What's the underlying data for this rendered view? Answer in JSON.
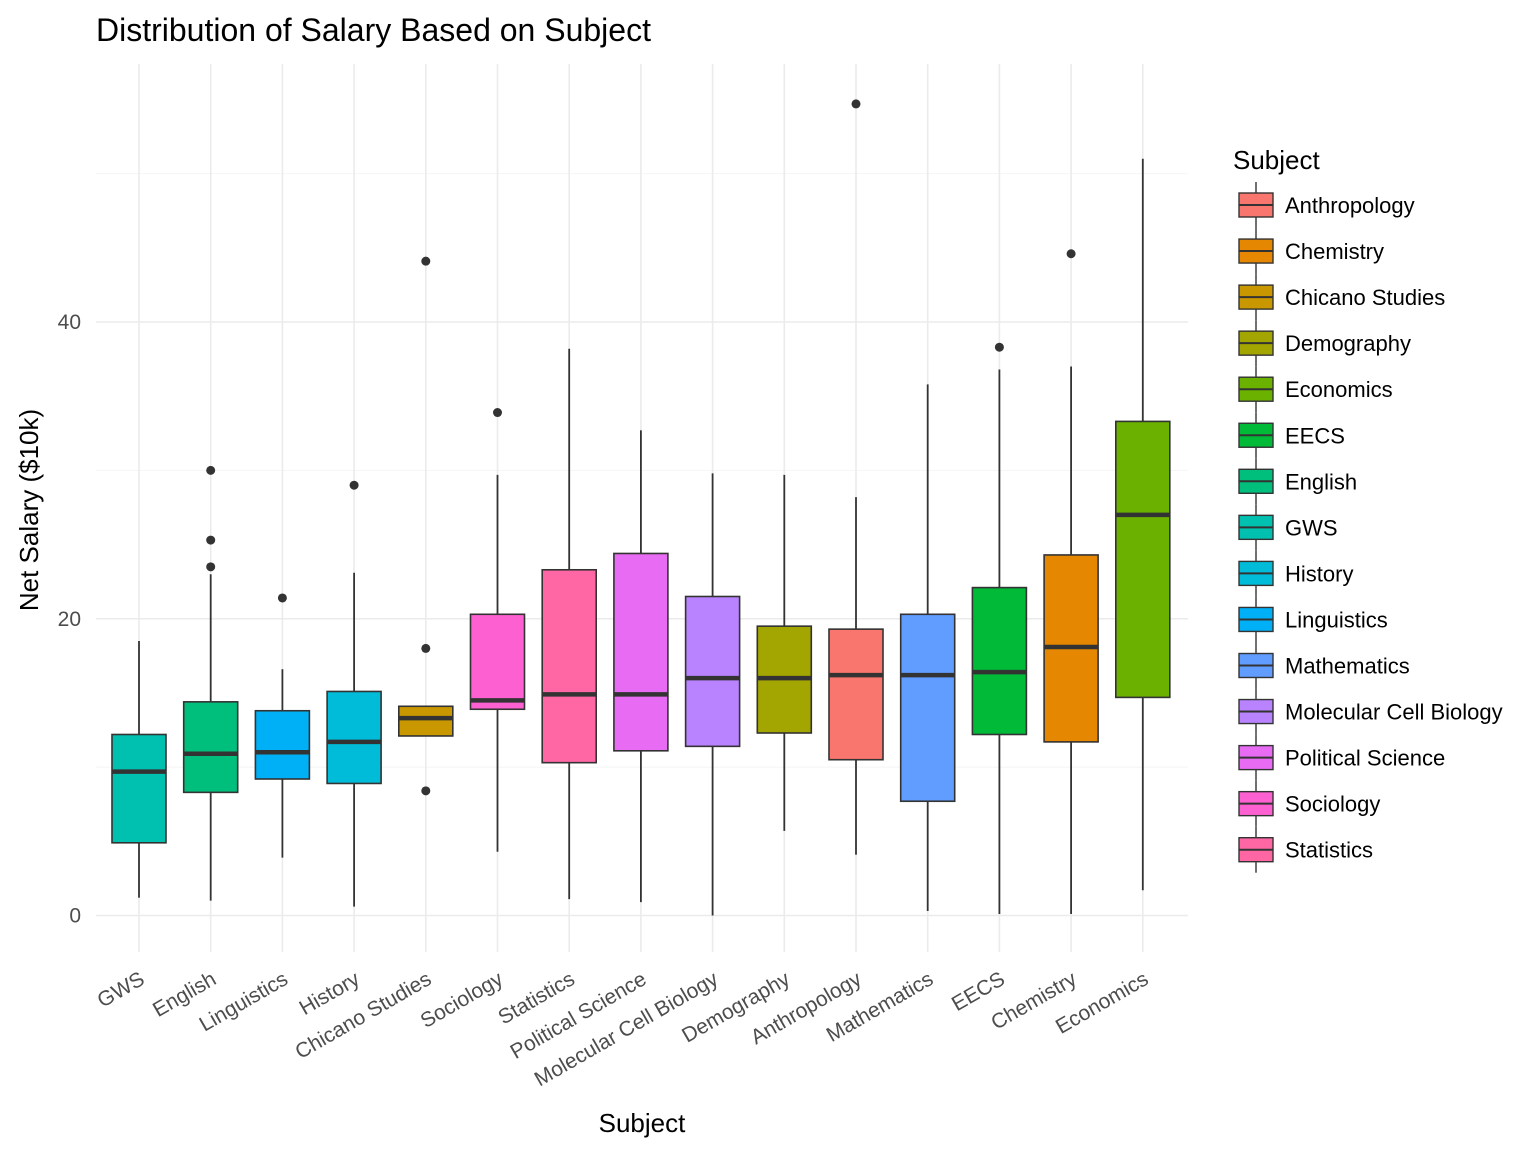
{
  "chart_data": {
    "type": "boxplot",
    "title": "Distribution of Salary Based on Subject",
    "xlabel": "Subject",
    "ylabel": "Net Salary ($10k)",
    "ylim": [
      -2.5,
      57
    ],
    "yticks": [
      0,
      20,
      40
    ],
    "grid": true,
    "legend": {
      "title": "Subject",
      "position": "right",
      "entries": [
        "Anthropology",
        "Chemistry",
        "Chicano Studies",
        "Demography",
        "Economics",
        "EECS",
        "English",
        "GWS",
        "History",
        "Linguistics",
        "Mathematics",
        "Molecular Cell Biology",
        "Political Science",
        "Sociology",
        "Statistics"
      ]
    },
    "colors": {
      "Anthropology": "#F8766D",
      "Chemistry": "#E58700",
      "Chicano Studies": "#C99800",
      "Demography": "#A3A500",
      "Economics": "#6BB100",
      "EECS": "#00BA38",
      "English": "#00BF7D",
      "GWS": "#00C0AF",
      "History": "#00BCD8",
      "Linguistics": "#00B0F6",
      "Mathematics": "#619CFF",
      "Molecular Cell Biology": "#B983FF",
      "Political Science": "#E76BF3",
      "Sociology": "#FD61D1",
      "Statistics": "#FF67A4"
    },
    "categories": [
      "GWS",
      "English",
      "Linguistics",
      "History",
      "Chicano Studies",
      "Sociology",
      "Statistics",
      "Political Science",
      "Molecular Cell Biology",
      "Demography",
      "Anthropology",
      "Mathematics",
      "EECS",
      "Chemistry",
      "Economics"
    ],
    "boxes": [
      {
        "category": "GWS",
        "whisker_low": 1.2,
        "q1": 4.9,
        "median": 9.7,
        "q3": 12.2,
        "whisker_high": 18.5,
        "outliers": []
      },
      {
        "category": "English",
        "whisker_low": 1.0,
        "q1": 8.3,
        "median": 10.9,
        "q3": 14.4,
        "whisker_high": 23.0,
        "outliers": [
          23.5,
          25.3,
          30.0
        ]
      },
      {
        "category": "Linguistics",
        "whisker_low": 3.9,
        "q1": 9.2,
        "median": 11.0,
        "q3": 13.8,
        "whisker_high": 16.6,
        "outliers": [
          21.4
        ]
      },
      {
        "category": "History",
        "whisker_low": 0.6,
        "q1": 8.9,
        "median": 11.7,
        "q3": 15.1,
        "whisker_high": 23.1,
        "outliers": [
          29.0
        ]
      },
      {
        "category": "Chicano Studies",
        "whisker_low": 12.1,
        "q1": 12.1,
        "median": 13.3,
        "q3": 14.1,
        "whisker_high": 14.1,
        "outliers": [
          8.4,
          18.0,
          44.1
        ]
      },
      {
        "category": "Sociology",
        "whisker_low": 4.3,
        "q1": 13.9,
        "median": 14.5,
        "q3": 20.3,
        "whisker_high": 29.7,
        "outliers": [
          33.9
        ]
      },
      {
        "category": "Statistics",
        "whisker_low": 1.1,
        "q1": 10.3,
        "median": 14.9,
        "q3": 23.3,
        "whisker_high": 38.2,
        "outliers": []
      },
      {
        "category": "Political Science",
        "whisker_low": 0.9,
        "q1": 11.1,
        "median": 14.9,
        "q3": 24.4,
        "whisker_high": 32.7,
        "outliers": []
      },
      {
        "category": "Molecular Cell Biology",
        "whisker_low": 0.0,
        "q1": 11.4,
        "median": 16.0,
        "q3": 21.5,
        "whisker_high": 29.8,
        "outliers": []
      },
      {
        "category": "Demography",
        "whisker_low": 5.7,
        "q1": 12.3,
        "median": 16.0,
        "q3": 19.5,
        "whisker_high": 29.7,
        "outliers": []
      },
      {
        "category": "Anthropology",
        "whisker_low": 4.1,
        "q1": 10.5,
        "median": 16.2,
        "q3": 19.3,
        "whisker_high": 28.2,
        "outliers": [
          54.7
        ]
      },
      {
        "category": "Mathematics",
        "whisker_low": 0.3,
        "q1": 7.7,
        "median": 16.2,
        "q3": 20.3,
        "whisker_high": 35.8,
        "outliers": []
      },
      {
        "category": "EECS",
        "whisker_low": 0.1,
        "q1": 12.2,
        "median": 16.4,
        "q3": 22.1,
        "whisker_high": 36.8,
        "outliers": [
          38.3
        ]
      },
      {
        "category": "Chemistry",
        "whisker_low": 0.1,
        "q1": 11.7,
        "median": 18.1,
        "q3": 24.3,
        "whisker_high": 37.0,
        "outliers": [
          44.6
        ]
      },
      {
        "category": "Economics",
        "whisker_low": 1.7,
        "q1": 14.7,
        "median": 27.0,
        "q3": 33.3,
        "whisker_high": 51.0,
        "outliers": []
      }
    ]
  }
}
